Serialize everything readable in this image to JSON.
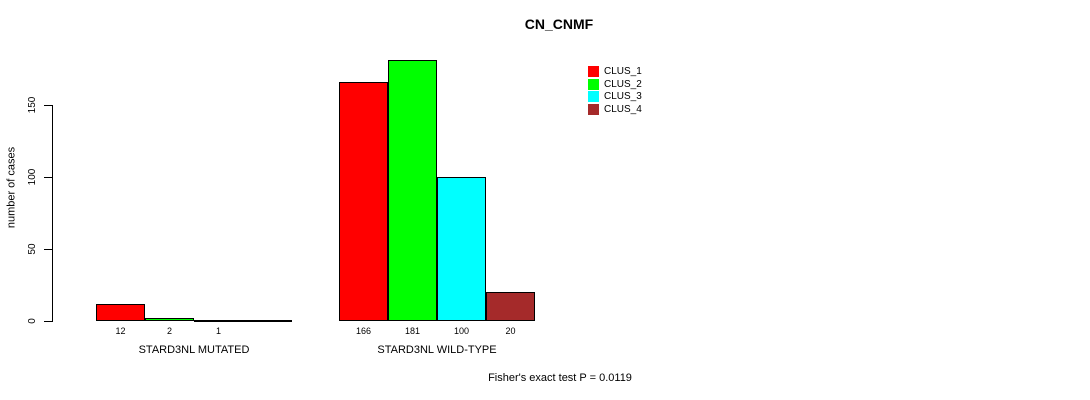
{
  "title": "CN_CNMF",
  "footnote": "Fisher's exact test P = 0.0119",
  "colors": {
    "background": "#ffffff",
    "axis": "#000000",
    "bar_border": "#000000",
    "clus_1": "#ff0000",
    "clus_2": "#00ff00",
    "clus_3": "#00ffff",
    "clus_4": "#a52a2a"
  },
  "legend": {
    "position": "top-right",
    "items": [
      {
        "label": "CLUS_1",
        "color": "#ff0000",
        "swatch_icon": "filled-square-icon"
      },
      {
        "label": "CLUS_2",
        "color": "#00ff00",
        "swatch_icon": "filled-square-icon"
      },
      {
        "label": "CLUS_3",
        "color": "#00ffff",
        "swatch_icon": "filled-square-icon"
      },
      {
        "label": "CLUS_4",
        "color": "#a52a2a",
        "swatch_icon": "filled-square-icon"
      }
    ]
  },
  "chart_data": {
    "type": "bar",
    "title": "CN_CNMF",
    "xlabel": "",
    "ylabel": "number of cases",
    "ylim": [
      0,
      150
    ],
    "yticks": [
      0,
      50,
      100,
      150
    ],
    "grid": false,
    "legend_position": "top-right",
    "categories": [
      "STARD3NL MUTATED",
      "STARD3NL WILD-TYPE"
    ],
    "series": [
      {
        "name": "CLUS_1",
        "color": "#ff0000",
        "values": [
          12,
          166
        ]
      },
      {
        "name": "CLUS_2",
        "color": "#00ff00",
        "values": [
          2,
          181
        ]
      },
      {
        "name": "CLUS_3",
        "color": "#00ffff",
        "values": [
          1,
          100
        ]
      },
      {
        "name": "CLUS_4",
        "color": "#a52a2a",
        "values": [
          0,
          20
        ]
      }
    ],
    "bar_labels": [
      [
        "12",
        "2",
        "1",
        ""
      ],
      [
        "166",
        "181",
        "100",
        "20"
      ]
    ],
    "annotation": "Fisher's exact test P = 0.0119"
  }
}
